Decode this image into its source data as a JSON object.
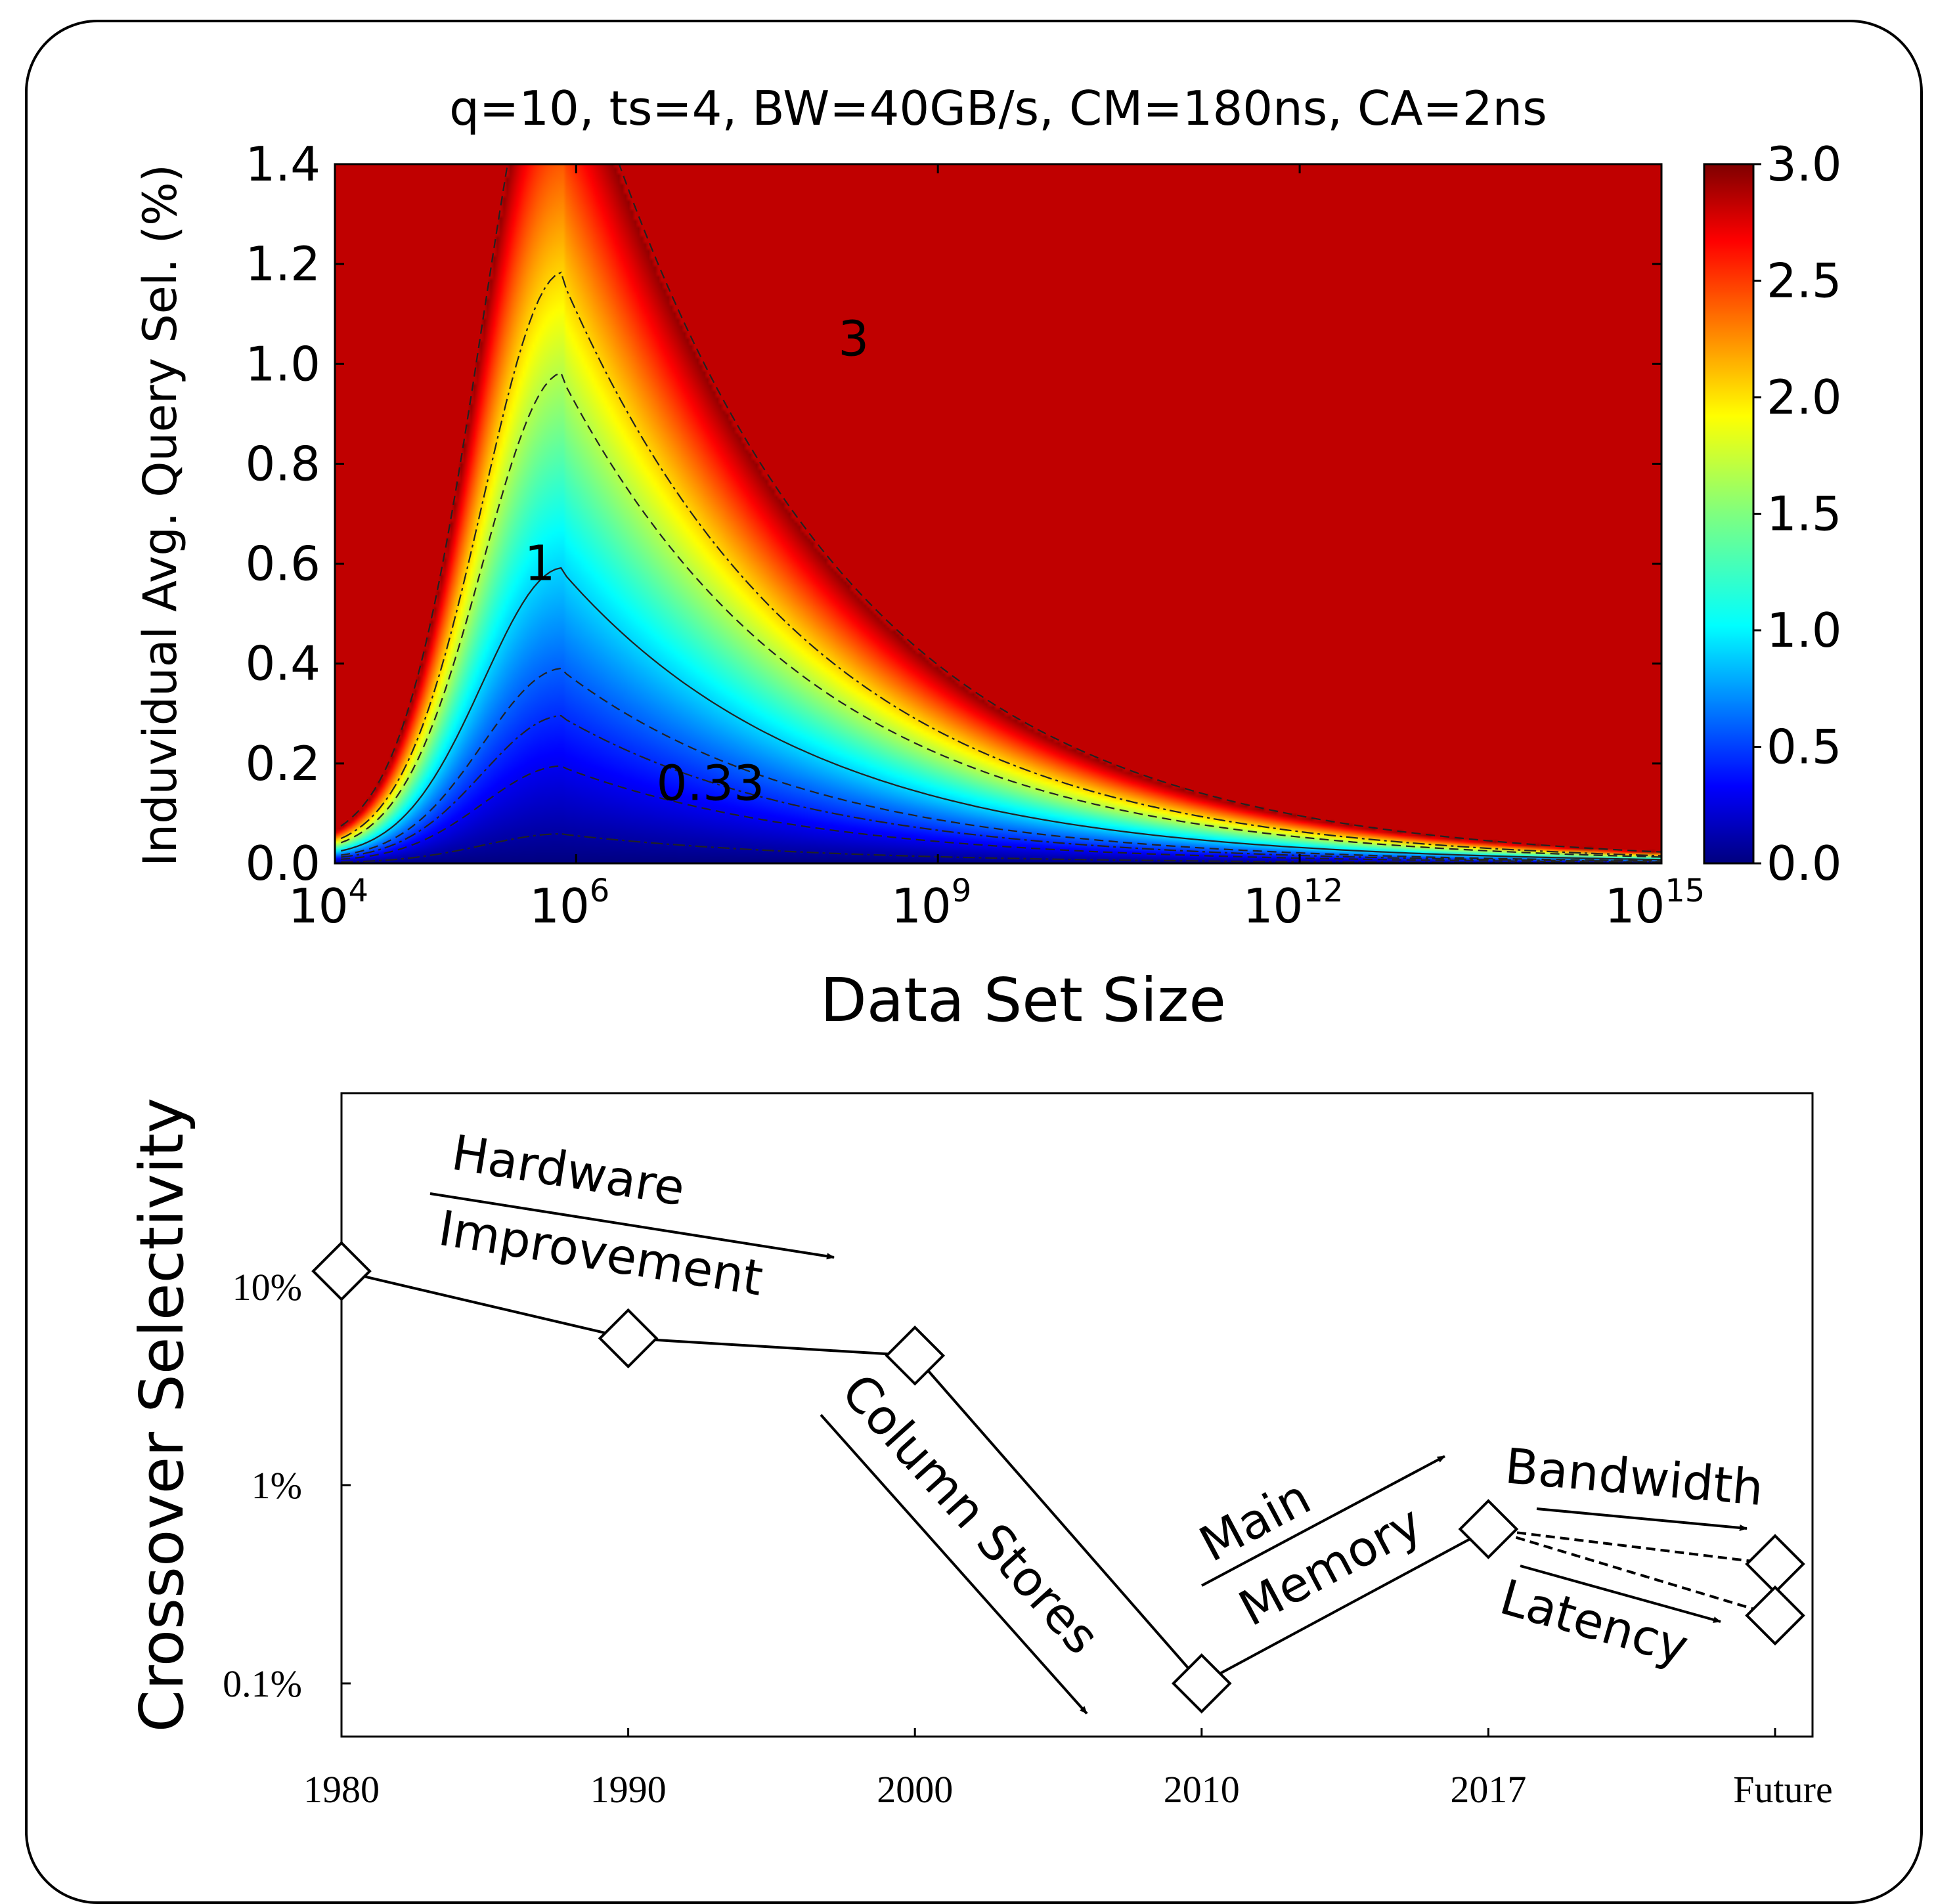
{
  "chart_data": [
    {
      "type": "heatmap",
      "title": "q=10, ts=4, BW=40GB/s, CM=180ns, CA=2ns",
      "xlabel": "Data Set Size",
      "ylabel": "Induvidual Avg. Query Sel. (%)",
      "x_scale": "log",
      "xlim": [
        10000,
        1000000000000000
      ],
      "ylim": [
        0.0,
        1.4
      ],
      "x_ticks": [
        {
          "value": 10000,
          "base": "10",
          "exp": "4"
        },
        {
          "value": 1000000,
          "base": "10",
          "exp": "6"
        },
        {
          "value": 1000000000,
          "base": "10",
          "exp": "9"
        },
        {
          "value": 1000000000000,
          "base": "10",
          "exp": "12"
        },
        {
          "value": 1000000000000000,
          "base": "10",
          "exp": "15"
        }
      ],
      "y_ticks": [
        "0.0",
        "0.2",
        "0.4",
        "0.6",
        "0.8",
        "1.0",
        "1.2",
        "1.4"
      ],
      "colorbar": {
        "min": 0.0,
        "max": 3.0,
        "colormap": "jet",
        "ticks": [
          "0.0",
          "0.5",
          "1.0",
          "1.5",
          "2.0",
          "2.5",
          "3.0"
        ]
      },
      "contour_levels": [
        0.1,
        0.33,
        0.5,
        0.66,
        1,
        1.66,
        2,
        3
      ],
      "contour_labels": [
        "3",
        "1",
        "0.33"
      ],
      "saturated_color": "#c00000"
    },
    {
      "type": "line",
      "ylabel": "Crossover Selectivity",
      "y_scale": "log",
      "categories": [
        "1980",
        "1990",
        "2000",
        "2010",
        "2017",
        "Future"
      ],
      "y_ticks": [
        "10%",
        "1%",
        "0.1%"
      ],
      "values": [
        12,
        5.5,
        4.5,
        0.1,
        0.6,
        null
      ],
      "future_values": [
        0.4,
        0.22
      ],
      "annotations": [
        "Hardware",
        "Improvement",
        "Column Stores",
        "Main",
        "Memory",
        "Bandwidth",
        "Latency"
      ]
    }
  ]
}
